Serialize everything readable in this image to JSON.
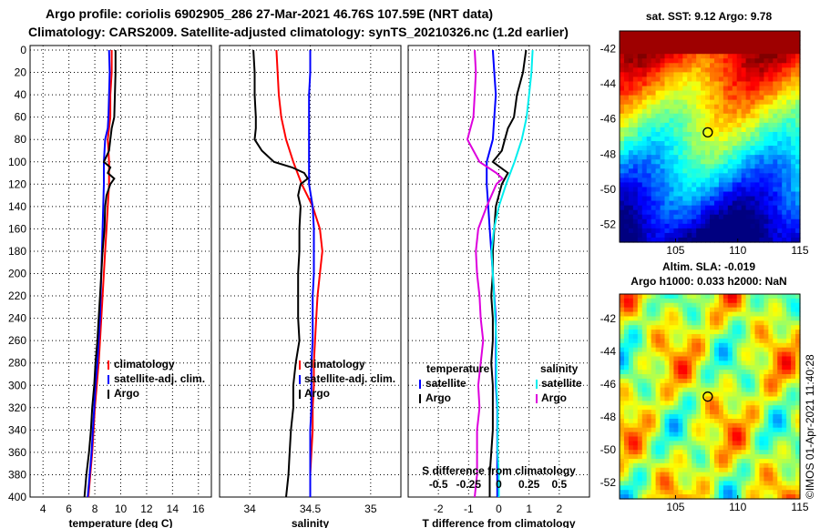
{
  "title_line1": "Argo profile: coriolis 6902905_286 27-Mar-2021 46.76S 107.59E (NRT data)",
  "title_line2": "Climatology: CARS2009. Satellite-adjusted climatology: synTS_20210326.nc (1.2d earlier)",
  "watermark": "©IMOS 01-Apr-2021 11:40:28",
  "colors": {
    "climatology": "#ff0000",
    "satellite": "#0000ff",
    "argo": "#000000",
    "argo_s": "#dd00dd",
    "sat_s": "#00eeee"
  },
  "chart_data": [
    {
      "type": "line",
      "name": "temperature",
      "xlabel": "temperature (deg C)",
      "ylabel": "",
      "xlim": [
        3,
        17
      ],
      "ylim": [
        400,
        0
      ],
      "xticks": [
        4,
        6,
        8,
        10,
        12,
        14,
        16
      ],
      "yticks": [
        0,
        20,
        40,
        60,
        80,
        100,
        120,
        140,
        160,
        180,
        200,
        220,
        240,
        260,
        280,
        300,
        320,
        340,
        360,
        380,
        400
      ],
      "legend": [
        "climatology",
        "satellite-adj. clim.",
        "Argo"
      ],
      "series": [
        {
          "name": "climatology",
          "color": "#ff0000",
          "depth": [
            0,
            20,
            40,
            60,
            70,
            80,
            100,
            120,
            140,
            160,
            180,
            200,
            220,
            240,
            260,
            280,
            300,
            320,
            340,
            360,
            380,
            400
          ],
          "values": [
            9.3,
            9.3,
            9.2,
            9.2,
            9.1,
            9.0,
            9.1,
            9.1,
            9.0,
            8.9,
            8.8,
            8.7,
            8.6,
            8.5,
            8.4,
            8.3,
            8.15,
            8.0,
            7.9,
            7.8,
            7.65,
            7.5
          ]
        },
        {
          "name": "satellite",
          "color": "#0000ff",
          "depth": [
            0,
            20,
            40,
            60,
            70,
            80,
            100,
            120,
            140,
            160,
            180,
            200,
            220,
            240,
            260,
            280,
            300,
            320,
            340,
            360,
            380,
            400
          ],
          "values": [
            9.1,
            9.15,
            9.1,
            9.05,
            9.0,
            8.8,
            8.7,
            8.7,
            8.65,
            8.6,
            8.55,
            8.5,
            8.45,
            8.4,
            8.3,
            8.2,
            8.05,
            7.95,
            7.85,
            7.75,
            7.6,
            7.45
          ]
        },
        {
          "name": "Argo",
          "color": "#000000",
          "depth": [
            0,
            20,
            40,
            60,
            70,
            80,
            90,
            100,
            105,
            110,
            115,
            120,
            130,
            140,
            160,
            180,
            200,
            220,
            240,
            260,
            280,
            300,
            320,
            340,
            360,
            380,
            400
          ],
          "values": [
            9.6,
            9.6,
            9.55,
            9.5,
            9.3,
            9.2,
            9.1,
            8.7,
            9.2,
            9.0,
            9.5,
            9.2,
            8.9,
            8.8,
            8.75,
            8.6,
            8.5,
            8.4,
            8.3,
            8.2,
            8.05,
            7.95,
            7.8,
            7.7,
            7.55,
            7.35,
            7.2
          ]
        }
      ]
    },
    {
      "type": "line",
      "name": "salinity",
      "xlabel": "salinity",
      "xlim": [
        33.75,
        35.25
      ],
      "ylim": [
        400,
        0
      ],
      "xticks": [
        34,
        34.5,
        35
      ],
      "legend": [
        "climatology",
        "satellite-adj. clim.",
        "Argo"
      ],
      "series": [
        {
          "name": "climatology",
          "color": "#ff0000",
          "depth": [
            0,
            20,
            40,
            60,
            80,
            100,
            120,
            140,
            160,
            180,
            200,
            220,
            240,
            260,
            280,
            300,
            320,
            340,
            360,
            380,
            400
          ],
          "values": [
            34.22,
            34.23,
            34.24,
            34.26,
            34.3,
            34.36,
            34.43,
            34.52,
            34.58,
            34.6,
            34.58,
            34.56,
            34.55,
            34.54,
            34.53,
            34.53,
            34.52,
            34.52,
            34.51,
            34.5,
            34.5
          ]
        },
        {
          "name": "satellite",
          "color": "#0000ff",
          "depth": [
            0,
            20,
            40,
            60,
            80,
            100,
            120,
            140,
            160,
            180,
            200,
            220,
            240,
            260,
            280,
            300,
            320,
            340,
            360,
            380,
            400
          ],
          "values": [
            34.5,
            34.5,
            34.49,
            34.49,
            34.49,
            34.49,
            34.49,
            34.52,
            34.53,
            34.53,
            34.53,
            34.52,
            34.52,
            34.52,
            34.51,
            34.51,
            34.51,
            34.5,
            34.5,
            34.5,
            34.5
          ]
        },
        {
          "name": "Argo",
          "color": "#000000",
          "depth": [
            0,
            20,
            40,
            60,
            70,
            80,
            90,
            100,
            105,
            110,
            115,
            120,
            130,
            140,
            160,
            180,
            200,
            220,
            240,
            260,
            280,
            300,
            320,
            340,
            360,
            380,
            400
          ],
          "values": [
            34.03,
            34.04,
            34.04,
            34.05,
            34.05,
            34.04,
            34.1,
            34.2,
            34.35,
            34.45,
            34.48,
            34.42,
            34.4,
            34.42,
            34.41,
            34.41,
            34.4,
            34.4,
            34.4,
            34.41,
            34.38,
            34.36,
            34.36,
            34.34,
            34.33,
            34.32,
            34.3
          ]
        }
      ]
    },
    {
      "type": "line",
      "name": "difference",
      "xlabel": "T difference from climatology",
      "xlabel_top": "S difference from climatology",
      "xlim": [
        -3,
        3
      ],
      "ylim": [
        400,
        0
      ],
      "xticks": [
        -2,
        -1,
        0,
        1,
        2
      ],
      "xticks_s": [
        "-0.5",
        "-0.25",
        "0",
        "0.25",
        "0.5"
      ],
      "legend_groups": [
        {
          "header": "temperature",
          "items": [
            "satellite",
            "Argo"
          ]
        },
        {
          "header": "salinity",
          "items": [
            "satellite",
            "Argo"
          ]
        }
      ],
      "series": [
        {
          "name": "T satellite",
          "color": "#0000ff",
          "depth": [
            0,
            20,
            40,
            60,
            80,
            100,
            120,
            140,
            160,
            180,
            200,
            220,
            240,
            260,
            280,
            300,
            320,
            340,
            360,
            380,
            400
          ],
          "values": [
            -0.2,
            -0.15,
            -0.1,
            -0.15,
            -0.2,
            -0.4,
            -0.4,
            -0.35,
            -0.3,
            -0.25,
            -0.2,
            -0.15,
            -0.1,
            -0.1,
            -0.1,
            -0.1,
            -0.05,
            -0.05,
            -0.05,
            -0.05,
            -0.05
          ]
        },
        {
          "name": "T Argo",
          "color": "#000000",
          "depth": [
            0,
            20,
            40,
            60,
            70,
            80,
            90,
            100,
            110,
            120,
            140,
            160,
            180,
            200,
            220,
            240,
            260,
            280,
            300,
            320,
            340,
            360,
            380,
            400
          ],
          "values": [
            0.9,
            0.8,
            0.6,
            0.5,
            0.3,
            0.2,
            0.1,
            -0.2,
            0.3,
            0.1,
            -0.1,
            -0.15,
            -0.2,
            -0.2,
            -0.25,
            -0.2,
            -0.2,
            -0.25,
            -0.2,
            -0.2,
            -0.2,
            -0.25,
            -0.3,
            -0.3
          ]
        },
        {
          "name": "S satellite",
          "color": "#00eeee",
          "depth": [
            0,
            20,
            40,
            60,
            80,
            100,
            120,
            140,
            160,
            180,
            200,
            220,
            240,
            260,
            280,
            300,
            320,
            340,
            360,
            380,
            400
          ],
          "values": [
            0.28,
            0.27,
            0.25,
            0.23,
            0.19,
            0.13,
            0.06,
            -0.0,
            -0.04,
            -0.06,
            -0.05,
            -0.04,
            -0.03,
            -0.02,
            -0.02,
            -0.02,
            -0.01,
            -0.01,
            -0.01,
            0.0,
            0.0
          ]
        },
        {
          "name": "S Argo",
          "color": "#dd00dd",
          "depth": [
            0,
            20,
            40,
            60,
            80,
            100,
            110,
            115,
            120,
            140,
            160,
            180,
            200,
            220,
            240,
            260,
            280,
            300,
            320,
            340,
            360,
            380,
            400
          ],
          "values": [
            -0.2,
            -0.19,
            -0.2,
            -0.21,
            -0.26,
            -0.16,
            -0.02,
            0.03,
            -0.02,
            -0.1,
            -0.17,
            -0.19,
            -0.18,
            -0.16,
            -0.15,
            -0.13,
            -0.15,
            -0.17,
            -0.16,
            -0.18,
            -0.18,
            -0.18,
            -0.2
          ]
        }
      ]
    },
    {
      "type": "heatmap",
      "name": "sst_map",
      "title": "sat. SST: 9.12  Argo: 9.78",
      "xlim": [
        100.5,
        115
      ],
      "ylim": [
        -53,
        -41
      ],
      "xticks": [
        105,
        110,
        115
      ],
      "yticks": [
        -42,
        -44,
        -46,
        -48,
        -50,
        -52
      ],
      "argo_position": {
        "lon": 107.59,
        "lat": -46.76
      }
    },
    {
      "type": "heatmap",
      "name": "sla_map",
      "title_line1": "Altim. SLA: -0.019",
      "title_line2": "Argo h1000: 0.033  h2000: NaN",
      "xlim": [
        100.5,
        115
      ],
      "ylim": [
        -53,
        -40.5
      ],
      "xticks": [
        105,
        110,
        115
      ],
      "yticks": [
        -42,
        -44,
        -46,
        -48,
        -50,
        -52
      ],
      "argo_position": {
        "lon": 107.59,
        "lat": -46.76
      }
    }
  ]
}
